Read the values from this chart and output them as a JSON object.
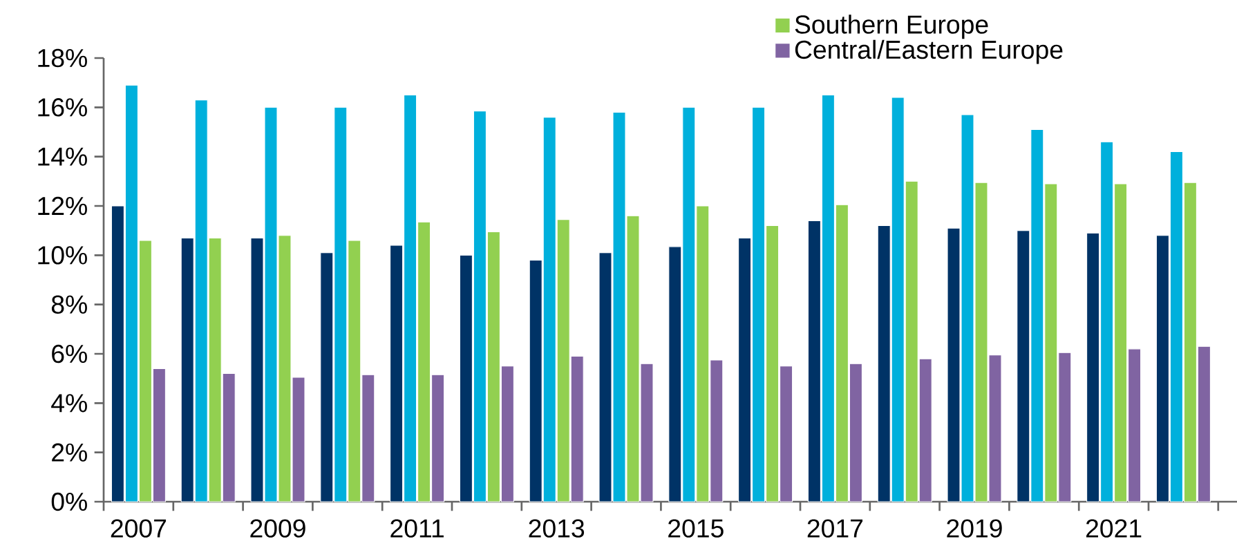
{
  "chart_data": {
    "type": "bar",
    "categories": [
      "2007",
      null,
      "2009",
      null,
      "2011",
      null,
      "2013",
      null,
      "2015",
      null,
      "2017",
      null,
      "2019",
      null,
      "2021",
      null
    ],
    "series": [
      {
        "color": "#003366",
        "values": [
          12.0,
          10.7,
          10.7,
          10.1,
          10.4,
          10.0,
          9.8,
          10.1,
          10.35,
          10.7,
          11.4,
          11.2,
          11.1,
          11.0,
          10.9,
          10.8
        ]
      },
      {
        "color": "#00b0dc",
        "values": [
          16.9,
          16.3,
          16.0,
          16.0,
          16.5,
          15.85,
          15.6,
          15.8,
          16.0,
          16.0,
          16.5,
          16.4,
          15.7,
          15.1,
          14.6,
          14.2
        ]
      },
      {
        "name": "Southern Europe",
        "color": "#92d050",
        "values": [
          10.6,
          10.7,
          10.8,
          10.6,
          11.35,
          10.95,
          11.45,
          11.6,
          12.0,
          11.2,
          12.05,
          13.0,
          12.95,
          12.9,
          12.9,
          12.95
        ]
      },
      {
        "name": "Central/Eastern Europe",
        "color": "#8064a2",
        "values": [
          5.4,
          5.2,
          5.05,
          5.15,
          5.15,
          5.5,
          5.9,
          5.6,
          5.75,
          5.5,
          5.6,
          5.8,
          5.95,
          6.05,
          6.2,
          6.3
        ]
      }
    ],
    "ylim": [
      0,
      18
    ],
    "yticks": [
      {
        "value": 0,
        "label": "0%"
      },
      {
        "value": 2,
        "label": "2%"
      },
      {
        "value": 4,
        "label": "4%"
      },
      {
        "value": 6,
        "label": "6%"
      },
      {
        "value": 8,
        "label": "8%"
      },
      {
        "value": 10,
        "label": "10%"
      },
      {
        "value": 12,
        "label": "12%"
      },
      {
        "value": 14,
        "label": "14%"
      },
      {
        "value": 16,
        "label": "16%"
      },
      {
        "value": 18,
        "label": "18%"
      }
    ],
    "grid": false,
    "legend": "top right"
  }
}
